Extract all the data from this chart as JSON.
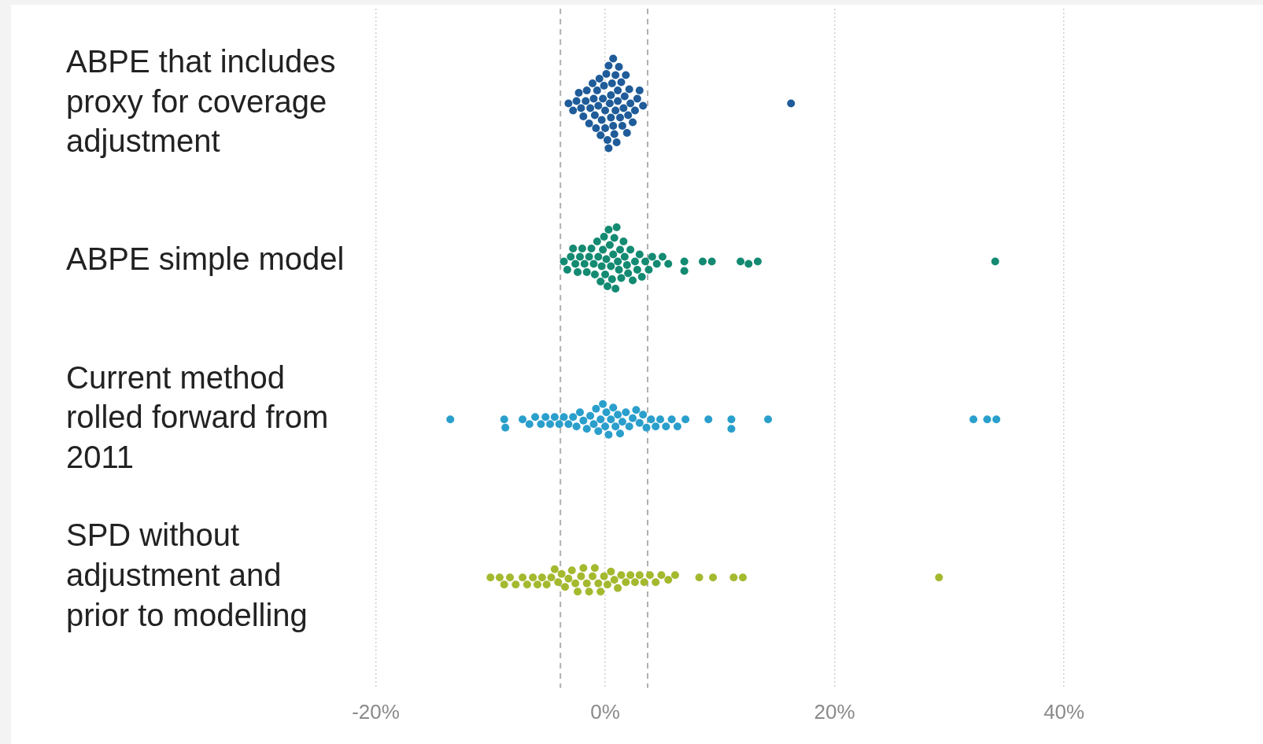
{
  "chart_data": {
    "type": "scatter",
    "orientation": "horizontal",
    "categories": [
      "ABPE that includes proxy for coverage adjustment",
      "ABPE simple model",
      "Current method rolled forward from 2011",
      "SPD without adjustment and prior to modelling"
    ],
    "series": [
      {
        "color": "#1f5c99",
        "x": [
          "ABPE that includes proxy for coverage adjustment",
          "ABPE that includes proxy for coverage adjustment",
          "ABPE that includes proxy for coverage adjustment",
          "ABPE that includes proxy for coverage adjustment",
          "ABPE that includes proxy for coverage adjustment",
          "ABPE that includes proxy for coverage adjustment",
          "ABPE that includes proxy for coverage adjustment",
          "ABPE that includes proxy for coverage adjustment",
          "ABPE that includes proxy for coverage adjustment",
          "ABPE that includes proxy for coverage adjustment",
          "ABPE that includes proxy for coverage adjustment",
          "ABPE that includes proxy for coverage adjustment",
          "ABPE that includes proxy for coverage adjustment",
          "ABPE that includes proxy for coverage adjustment",
          "ABPE that includes proxy for coverage adjustment",
          "ABPE that includes proxy for coverage adjustment",
          "ABPE that includes proxy for coverage adjustment",
          "ABPE that includes proxy for coverage adjustment",
          "ABPE that includes proxy for coverage adjustment",
          "ABPE that includes proxy for coverage adjustment",
          "ABPE that includes proxy for coverage adjustment",
          "ABPE that includes proxy for coverage adjustment",
          "ABPE that includes proxy for coverage adjustment",
          "ABPE that includes proxy for coverage adjustment",
          "ABPE that includes proxy for coverage adjustment",
          "ABPE that includes proxy for coverage adjustment",
          "ABPE that includes proxy for coverage adjustment",
          "ABPE that includes proxy for coverage adjustment",
          "ABPE that includes proxy for coverage adjustment",
          "ABPE that includes proxy for coverage adjustment",
          "ABPE that includes proxy for coverage adjustment",
          "ABPE that includes proxy for coverage adjustment",
          "ABPE that includes proxy for coverage adjustment",
          "ABPE that includes proxy for coverage adjustment",
          "ABPE that includes proxy for coverage adjustment",
          "ABPE that includes proxy for coverage adjustment",
          "ABPE that includes proxy for coverage adjustment",
          "ABPE that includes proxy for coverage adjustment",
          "ABPE that includes proxy for coverage adjustment",
          "ABPE that includes proxy for coverage adjustment",
          "ABPE that includes proxy for coverage adjustment",
          "ABPE that includes proxy for coverage adjustment",
          "ABPE that includes proxy for coverage adjustment",
          "ABPE that includes proxy for coverage adjustment",
          "ABPE that includes proxy for coverage adjustment",
          "ABPE that includes proxy for coverage adjustment",
          "ABPE that includes proxy for coverage adjustment",
          "ABPE that includes proxy for coverage adjustment",
          "ABPE that includes proxy for coverage adjustment",
          "ABPE that includes proxy for coverage adjustment",
          "ABPE that includes proxy for coverage adjustment",
          "ABPE that includes proxy for coverage adjustment",
          "ABPE that includes proxy for coverage adjustment",
          "ABPE that includes proxy for coverage adjustment",
          "ABPE that includes proxy for coverage adjustment",
          "ABPE that includes proxy for coverage adjustment"
        ],
        "values": [
          -3.2,
          -2.8,
          -2.5,
          -2.3,
          -2.1,
          -1.9,
          -1.7,
          -1.6,
          -1.4,
          -1.3,
          -1.1,
          -1.0,
          -0.9,
          -0.8,
          -0.7,
          -0.6,
          -0.5,
          -0.4,
          -0.3,
          -0.2,
          -0.1,
          0,
          0,
          0.1,
          0.2,
          0.3,
          0.3,
          0.4,
          0.5,
          0.5,
          0.6,
          0.7,
          0.7,
          0.8,
          0.9,
          0.9,
          1.0,
          1.1,
          1.1,
          1.2,
          1.3,
          1.4,
          1.5,
          1.6,
          1.7,
          1.8,
          1.9,
          2.0,
          2.1,
          2.2,
          2.4,
          2.6,
          2.8,
          3.0,
          3.3,
          16.2
        ]
      },
      {
        "color": "#138a72",
        "x": [
          "ABPE simple model",
          "ABPE simple model",
          "ABPE simple model",
          "ABPE simple model",
          "ABPE simple model",
          "ABPE simple model",
          "ABPE simple model",
          "ABPE simple model",
          "ABPE simple model",
          "ABPE simple model",
          "ABPE simple model",
          "ABPE simple model",
          "ABPE simple model",
          "ABPE simple model",
          "ABPE simple model",
          "ABPE simple model",
          "ABPE simple model",
          "ABPE simple model",
          "ABPE simple model",
          "ABPE simple model",
          "ABPE simple model",
          "ABPE simple model",
          "ABPE simple model",
          "ABPE simple model",
          "ABPE simple model",
          "ABPE simple model",
          "ABPE simple model",
          "ABPE simple model",
          "ABPE simple model",
          "ABPE simple model",
          "ABPE simple model",
          "ABPE simple model",
          "ABPE simple model",
          "ABPE simple model",
          "ABPE simple model",
          "ABPE simple model",
          "ABPE simple model",
          "ABPE simple model",
          "ABPE simple model",
          "ABPE simple model",
          "ABPE simple model",
          "ABPE simple model",
          "ABPE simple model",
          "ABPE simple model",
          "ABPE simple model",
          "ABPE simple model",
          "ABPE simple model",
          "ABPE simple model",
          "ABPE simple model",
          "ABPE simple model",
          "ABPE simple model",
          "ABPE simple model",
          "ABPE simple model",
          "ABPE simple model",
          "ABPE simple model",
          "ABPE simple model",
          "ABPE simple model",
          "ABPE simple model",
          "ABPE simple model"
        ],
        "values": [
          -3.6,
          -3.3,
          -3.0,
          -2.8,
          -2.6,
          -2.4,
          -2.2,
          -2.0,
          -1.8,
          -1.6,
          -1.4,
          -1.2,
          -1.0,
          -0.9,
          -0.7,
          -0.6,
          -0.4,
          -0.3,
          -0.2,
          -0.1,
          0,
          0.1,
          0.2,
          0.3,
          0.4,
          0.5,
          0.6,
          0.7,
          0.8,
          0.9,
          1.0,
          1.1,
          1.2,
          1.3,
          1.4,
          1.6,
          1.7,
          1.9,
          2.0,
          2.2,
          2.4,
          2.6,
          2.8,
          3.0,
          3.2,
          3.5,
          3.8,
          4.1,
          4.5,
          5.0,
          5.5,
          6.9,
          6.9,
          8.5,
          9.3,
          11.8,
          12.5,
          13.3,
          34.0
        ]
      },
      {
        "color": "#2a9fcc",
        "x": [
          "Current method rolled forward from 2011",
          "Current method rolled forward from 2011",
          "Current method rolled forward from 2011",
          "Current method rolled forward from 2011",
          "Current method rolled forward from 2011",
          "Current method rolled forward from 2011",
          "Current method rolled forward from 2011",
          "Current method rolled forward from 2011",
          "Current method rolled forward from 2011",
          "Current method rolled forward from 2011",
          "Current method rolled forward from 2011",
          "Current method rolled forward from 2011",
          "Current method rolled forward from 2011",
          "Current method rolled forward from 2011",
          "Current method rolled forward from 2011",
          "Current method rolled forward from 2011",
          "Current method rolled forward from 2011",
          "Current method rolled forward from 2011",
          "Current method rolled forward from 2011",
          "Current method rolled forward from 2011",
          "Current method rolled forward from 2011",
          "Current method rolled forward from 2011",
          "Current method rolled forward from 2011",
          "Current method rolled forward from 2011",
          "Current method rolled forward from 2011",
          "Current method rolled forward from 2011",
          "Current method rolled forward from 2011",
          "Current method rolled forward from 2011",
          "Current method rolled forward from 2011",
          "Current method rolled forward from 2011",
          "Current method rolled forward from 2011",
          "Current method rolled forward from 2011",
          "Current method rolled forward from 2011",
          "Current method rolled forward from 2011",
          "Current method rolled forward from 2011",
          "Current method rolled forward from 2011",
          "Current method rolled forward from 2011",
          "Current method rolled forward from 2011",
          "Current method rolled forward from 2011",
          "Current method rolled forward from 2011",
          "Current method rolled forward from 2011",
          "Current method rolled forward from 2011",
          "Current method rolled forward from 2011",
          "Current method rolled forward from 2011",
          "Current method rolled forward from 2011",
          "Current method rolled forward from 2011",
          "Current method rolled forward from 2011",
          "Current method rolled forward from 2011",
          "Current method rolled forward from 2011",
          "Current method rolled forward from 2011",
          "Current method rolled forward from 2011",
          "Current method rolled forward from 2011",
          "Current method rolled forward from 2011",
          "Current method rolled forward from 2011"
        ],
        "values": [
          -13.5,
          -8.8,
          -8.7,
          -7.2,
          -6.6,
          -6.1,
          -5.6,
          -5.2,
          -4.8,
          -4.4,
          -4.0,
          -3.6,
          -3.2,
          -2.8,
          -2.5,
          -2.2,
          -1.9,
          -1.6,
          -1.3,
          -1.0,
          -0.8,
          -0.6,
          -0.4,
          -0.2,
          0,
          0.1,
          0.3,
          0.5,
          0.7,
          0.9,
          1.1,
          1.3,
          1.5,
          1.8,
          2.1,
          2.4,
          2.7,
          3.0,
          3.3,
          3.6,
          4.0,
          4.4,
          4.8,
          5.3,
          5.8,
          6.3,
          7.0,
          9.0,
          11.0,
          11.0,
          14.2,
          32.1,
          33.3,
          34.1
        ]
      },
      {
        "color": "#a5b92f",
        "x": [
          "SPD without adjustment and prior to modelling",
          "SPD without adjustment and prior to modelling",
          "SPD without adjustment and prior to modelling",
          "SPD without adjustment and prior to modelling",
          "SPD without adjustment and prior to modelling",
          "SPD without adjustment and prior to modelling",
          "SPD without adjustment and prior to modelling",
          "SPD without adjustment and prior to modelling",
          "SPD without adjustment and prior to modelling",
          "SPD without adjustment and prior to modelling",
          "SPD without adjustment and prior to modelling",
          "SPD without adjustment and prior to modelling",
          "SPD without adjustment and prior to modelling",
          "SPD without adjustment and prior to modelling",
          "SPD without adjustment and prior to modelling",
          "SPD without adjustment and prior to modelling",
          "SPD without adjustment and prior to modelling",
          "SPD without adjustment and prior to modelling",
          "SPD without adjustment and prior to modelling",
          "SPD without adjustment and prior to modelling",
          "SPD without adjustment and prior to modelling",
          "SPD without adjustment and prior to modelling",
          "SPD without adjustment and prior to modelling",
          "SPD without adjustment and prior to modelling",
          "SPD without adjustment and prior to modelling",
          "SPD without adjustment and prior to modelling",
          "SPD without adjustment and prior to modelling",
          "SPD without adjustment and prior to modelling",
          "SPD without adjustment and prior to modelling",
          "SPD without adjustment and prior to modelling",
          "SPD without adjustment and prior to modelling",
          "SPD without adjustment and prior to modelling",
          "SPD without adjustment and prior to modelling",
          "SPD without adjustment and prior to modelling",
          "SPD without adjustment and prior to modelling",
          "SPD without adjustment and prior to modelling",
          "SPD without adjustment and prior to modelling",
          "SPD without adjustment and prior to modelling",
          "SPD without adjustment and prior to modelling",
          "SPD without adjustment and prior to modelling",
          "SPD without adjustment and prior to modelling",
          "SPD without adjustment and prior to modelling",
          "SPD without adjustment and prior to modelling",
          "SPD without adjustment and prior to modelling",
          "SPD without adjustment and prior to modelling",
          "SPD without adjustment and prior to modelling",
          "SPD without adjustment and prior to modelling",
          "SPD without adjustment and prior to modelling",
          "SPD without adjustment and prior to modelling"
        ],
        "values": [
          -10.0,
          -9.2,
          -8.8,
          -8.3,
          -7.8,
          -7.2,
          -6.8,
          -6.3,
          -5.9,
          -5.5,
          -5.1,
          -4.7,
          -4.4,
          -4.1,
          -3.8,
          -3.5,
          -3.2,
          -2.9,
          -2.6,
          -2.4,
          -2.1,
          -1.9,
          -1.6,
          -1.4,
          -1.1,
          -0.9,
          -0.6,
          -0.4,
          -0.1,
          0.2,
          0.5,
          0.8,
          1.1,
          1.4,
          1.8,
          2.2,
          2.6,
          3.0,
          3.4,
          3.9,
          4.4,
          4.9,
          5.5,
          6.1,
          8.2,
          9.4,
          11.2,
          12.0,
          29.1
        ]
      }
    ],
    "xlim": [
      -20,
      57
    ],
    "xticks": [
      {
        "value": -20,
        "label": "-20%"
      },
      {
        "value": 0,
        "label": "0%"
      },
      {
        "value": 20,
        "label": "20%"
      },
      {
        "value": 40,
        "label": "40%"
      }
    ],
    "grid": "x",
    "legend": false,
    "marker": "circle",
    "ref_lines": [
      {
        "axis": "x",
        "value": -3.9,
        "label": null,
        "color": "#b0b0b0",
        "line_style": "dashed"
      },
      {
        "axis": "x",
        "value": 3.7,
        "label": null,
        "color": "#b0b0b0",
        "line_style": "dashed"
      }
    ]
  }
}
